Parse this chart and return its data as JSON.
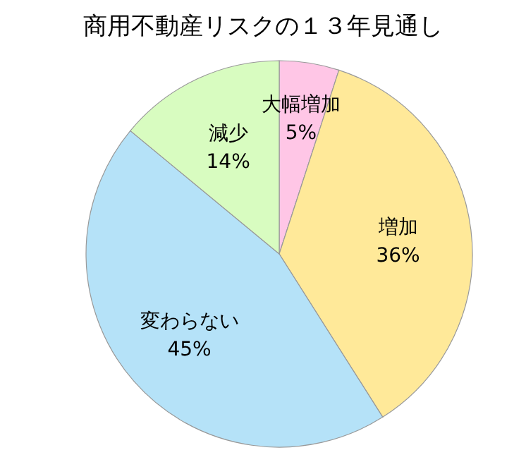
{
  "chart_data": {
    "type": "pie",
    "title": "商用不動産リスクの１３年見通し",
    "categories": [
      "大幅増加",
      "増加",
      "変わらない",
      "減少"
    ],
    "values": [
      5,
      36,
      45,
      14
    ],
    "colors": [
      "#ffc6e6",
      "#ffe999",
      "#b5e2f8",
      "#d8fcc0"
    ],
    "value_labels": [
      "5%",
      "36%",
      "45%",
      "14%"
    ]
  }
}
